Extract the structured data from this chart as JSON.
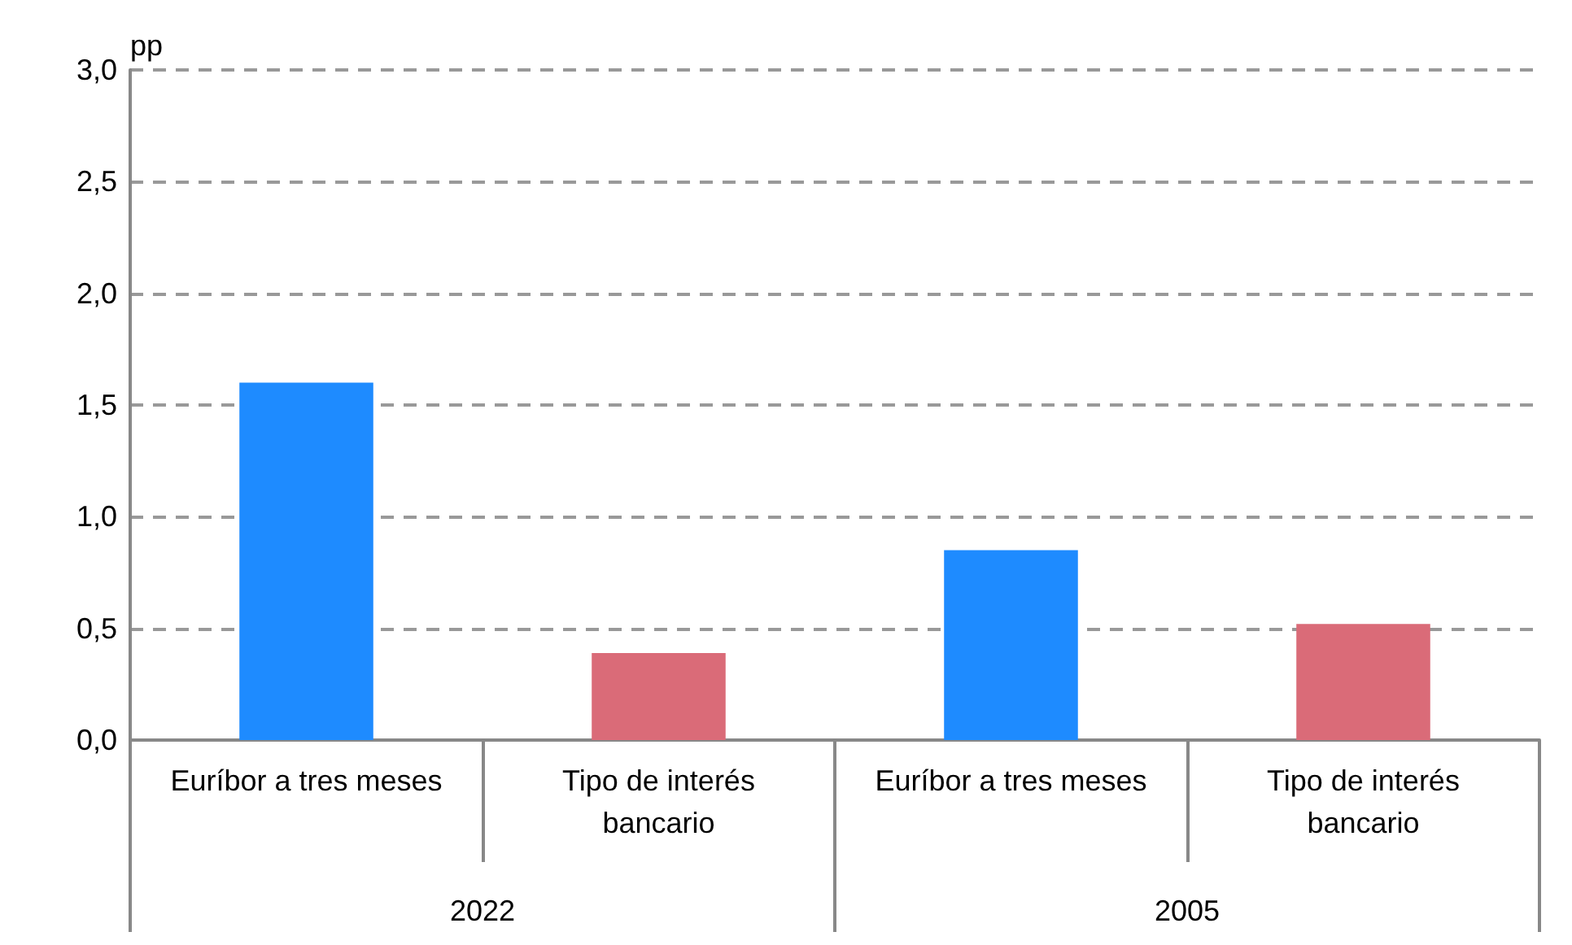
{
  "chart_data": {
    "type": "bar",
    "ylabel": "pp",
    "categories": [
      "Euríbor a tres meses",
      "Tipo de interés\nbancario",
      "Euríbor a tres meses",
      "Tipo de interés\nbancario"
    ],
    "values": [
      1.6,
      0.39,
      0.85,
      0.52
    ],
    "colors": [
      "#1e8bff",
      "#da6b78",
      "#1e8bff",
      "#da6b78"
    ],
    "ylim": [
      0,
      3
    ],
    "yticks": [
      {
        "value": 0,
        "label": "0,0"
      },
      {
        "value": 0.5,
        "label": "0,5"
      },
      {
        "value": 1,
        "label": "1,0"
      },
      {
        "value": 1.5,
        "label": "1,5"
      },
      {
        "value": 2,
        "label": "2,0"
      },
      {
        "value": 2.5,
        "label": "2,5"
      },
      {
        "value": 3,
        "label": "3,0"
      }
    ],
    "grid": "y",
    "annotations": [
      "2022",
      "2005"
    ]
  }
}
